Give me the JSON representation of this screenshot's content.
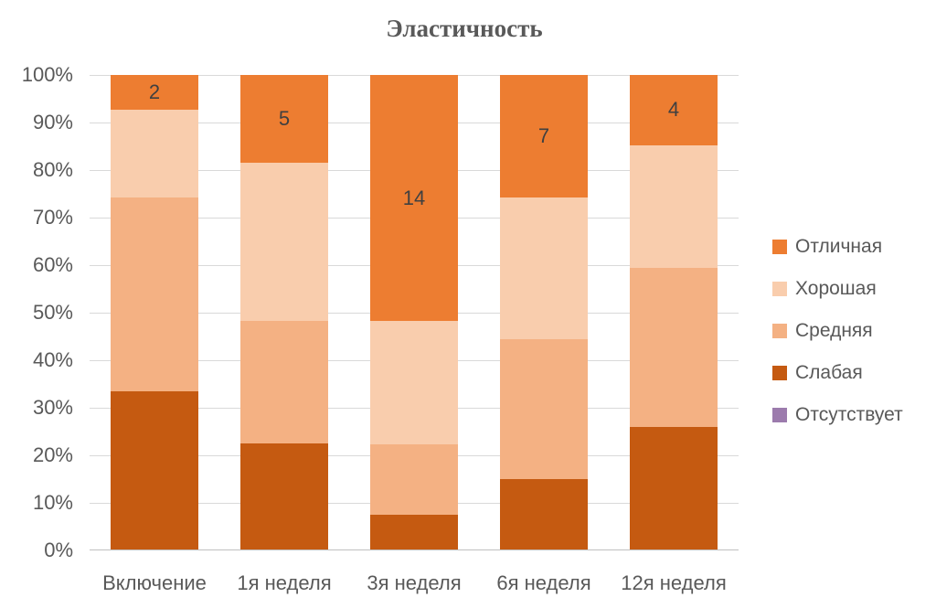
{
  "chart_data": {
    "type": "bar",
    "variant": "stacked-100-percent-column",
    "title": "Эластичность",
    "categories": [
      "Включение",
      "1я неделя",
      "3я неделя",
      "6я неделя",
      "12я неделя"
    ],
    "series": [
      {
        "name": "Отличная",
        "color": "#ED7D31",
        "values_pct": [
          7.4,
          18.5,
          51.9,
          25.9,
          14.8
        ],
        "data_labels": [
          "2",
          "5",
          "14",
          "7",
          "4"
        ]
      },
      {
        "name": "Хорошая",
        "color": "#F9CDAD",
        "values_pct": [
          18.5,
          33.3,
          25.9,
          29.7,
          25.9
        ]
      },
      {
        "name": "Средняя",
        "color": "#F4B183",
        "values_pct": [
          40.8,
          25.9,
          14.8,
          29.6,
          33.4
        ]
      },
      {
        "name": "Слабая",
        "color": "#C55A11",
        "values_pct": [
          33.3,
          22.3,
          7.4,
          14.8,
          25.9
        ]
      },
      {
        "name": "Отсутствует",
        "color": "#9C7BAD",
        "values_pct": [
          0,
          0,
          0,
          0,
          0
        ]
      }
    ],
    "y_ticks": [
      "100%",
      "90%",
      "80%",
      "70%",
      "60%",
      "50%",
      "40%",
      "30%",
      "20%",
      "10%",
      "0%"
    ],
    "ylim": [
      0,
      100
    ],
    "grid": true,
    "legend_position": "right",
    "colors": {
      "title_text": "#595959",
      "axis_text": "#595959",
      "data_label_text": "#404040",
      "gridline": "#D9D9D9",
      "axis_line": "#BFBFBF",
      "background": "#FFFFFF"
    }
  }
}
